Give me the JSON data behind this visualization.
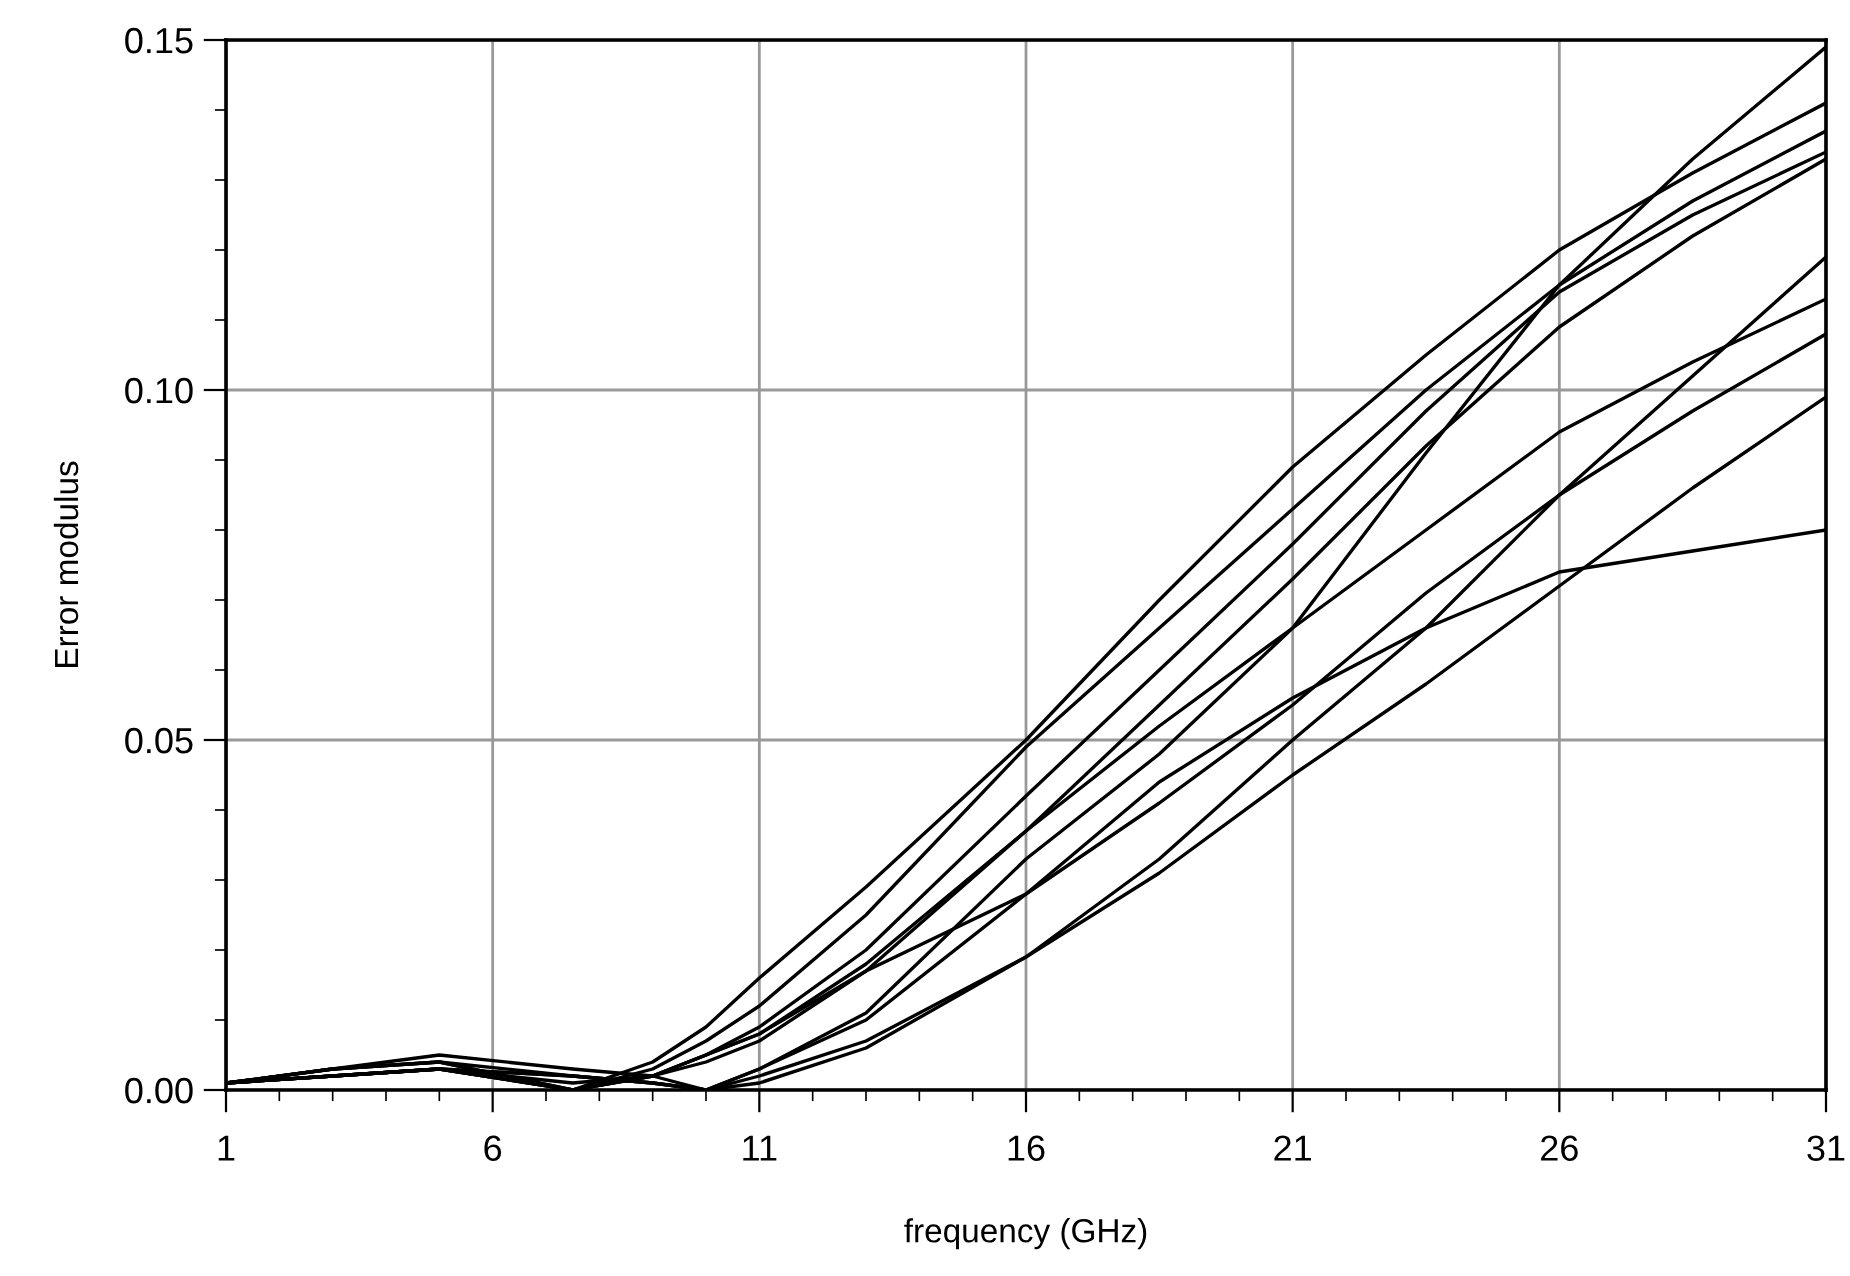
{
  "chart_data": {
    "type": "line",
    "xlabel": "frequency (GHz)",
    "ylabel": "Error modulus",
    "x": [
      1,
      3,
      5,
      7.5,
      9,
      10,
      11,
      13,
      16,
      18.5,
      21,
      23.5,
      26,
      28.5,
      31
    ],
    "series": [
      {
        "color": "#000000",
        "values": [
          0.001,
          0.003,
          0.004,
          0.0,
          0.004,
          0.009,
          0.016,
          0.029,
          0.05,
          0.07,
          0.089,
          0.105,
          0.12,
          0.131,
          0.141
        ]
      },
      {
        "color": "#000000",
        "values": [
          0.001,
          0.003,
          0.004,
          0.0,
          0.003,
          0.007,
          0.012,
          0.025,
          0.049,
          0.066,
          0.083,
          0.1,
          0.115,
          0.127,
          0.137
        ]
      },
      {
        "color": "#000000",
        "values": [
          0.001,
          0.002,
          0.003,
          0.0,
          0.002,
          0.005,
          0.009,
          0.02,
          0.042,
          0.06,
          0.078,
          0.097,
          0.114,
          0.125,
          0.134
        ]
      },
      {
        "color": "#000000",
        "values": [
          0.001,
          0.002,
          0.003,
          0.0,
          0.002,
          0.005,
          0.008,
          0.018,
          0.037,
          0.055,
          0.073,
          0.092,
          0.109,
          0.122,
          0.133
        ]
      },
      {
        "color": "#000000",
        "values": [
          0.001,
          0.003,
          0.004,
          0.002,
          0.001,
          0.0,
          0.003,
          0.011,
          0.033,
          0.048,
          0.066,
          0.091,
          0.115,
          0.133,
          0.149
        ]
      },
      {
        "color": "#000000",
        "values": [
          0.001,
          0.002,
          0.003,
          0.0,
          0.002,
          0.004,
          0.007,
          0.017,
          0.037,
          0.052,
          0.066,
          0.08,
          0.094,
          0.104,
          0.113
        ]
      },
      {
        "color": "#000000",
        "values": [
          0.001,
          0.002,
          0.003,
          0.001,
          0.002,
          0.005,
          0.008,
          0.017,
          0.028,
          0.044,
          0.056,
          0.066,
          0.074,
          0.077,
          0.08
        ]
      },
      {
        "color": "#000000",
        "values": [
          0.001,
          0.002,
          0.003,
          0.002,
          0.001,
          0.0,
          0.003,
          0.01,
          0.028,
          0.041,
          0.055,
          0.071,
          0.085,
          0.097,
          0.108
        ]
      },
      {
        "color": "#000000",
        "values": [
          0.001,
          0.003,
          0.005,
          0.003,
          0.002,
          0.0,
          0.002,
          0.007,
          0.019,
          0.033,
          0.05,
          0.066,
          0.085,
          0.102,
          0.119
        ]
      },
      {
        "color": "#000000",
        "values": [
          0.001,
          0.002,
          0.003,
          0.002,
          0.001,
          0.0,
          0.001,
          0.006,
          0.019,
          0.031,
          0.045,
          0.058,
          0.072,
          0.086,
          0.099
        ]
      }
    ],
    "xlim": [
      1,
      31
    ],
    "xticks": [
      1,
      6,
      11,
      16,
      21,
      26,
      31
    ],
    "ylim": [
      0,
      0.15
    ],
    "yticks": [
      {
        "value": 0,
        "label": "0.00"
      },
      {
        "value": 0.05,
        "label": "0.05"
      },
      {
        "value": 0.1,
        "label": "0.10"
      },
      {
        "value": 0.15,
        "label": "0.15"
      }
    ],
    "grid": true,
    "marker": "none",
    "line_style": "solid"
  }
}
